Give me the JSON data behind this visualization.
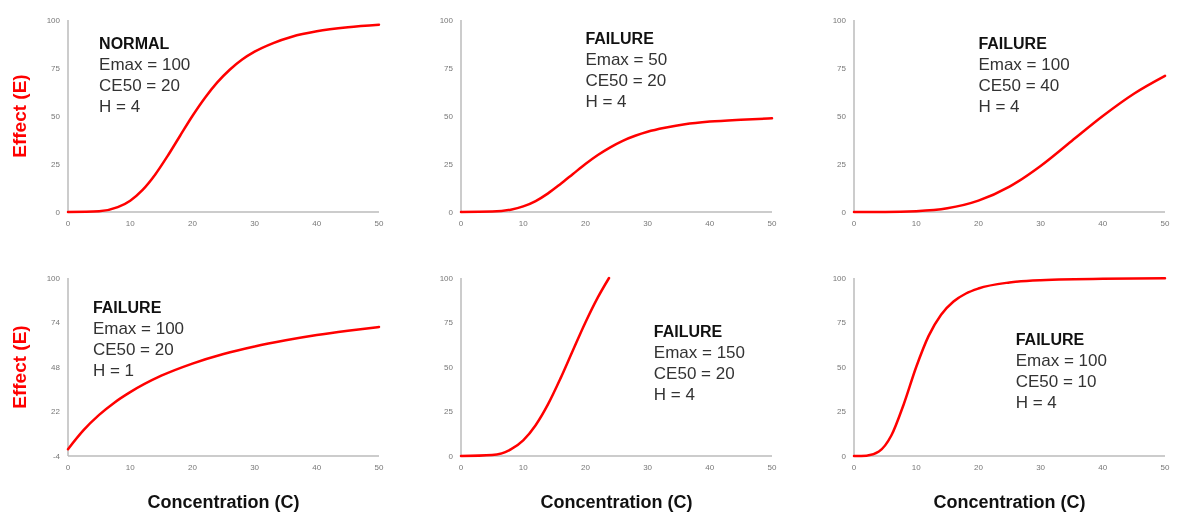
{
  "chart_data": [
    {
      "type": "line",
      "ylabel": "Effect (E)",
      "annotations": [
        "NORMAL",
        "Emax = 100",
        "CE50 = 20",
        "H = 4"
      ],
      "xlim": [
        0,
        50
      ],
      "ylim": [
        0,
        100
      ],
      "xticks": [
        0,
        10,
        20,
        30,
        40,
        50
      ],
      "yticks": [
        0,
        25,
        50,
        75,
        100
      ],
      "series": [
        {
          "color": "#ff0000",
          "x": [
            0,
            5,
            8,
            10,
            12,
            14,
            16,
            18,
            20,
            22,
            24,
            26,
            28,
            30,
            33,
            36,
            40,
            45,
            50
          ],
          "values": [
            0,
            0.4,
            2.5,
            5.9,
            11.5,
            19.4,
            29.1,
            39.6,
            50,
            59.4,
            67.5,
            74.1,
            79.4,
            83.5,
            88,
            91.3,
            94.1,
            96.2,
            97.5
          ]
        }
      ]
    },
    {
      "type": "line",
      "annotations": [
        "FAILURE",
        "Emax = 50",
        "CE50 = 20",
        "H = 4"
      ],
      "xlim": [
        0,
        50
      ],
      "ylim": [
        0,
        100
      ],
      "xticks": [
        0,
        10,
        20,
        30,
        40,
        50
      ],
      "yticks": [
        0,
        25,
        50,
        75,
        100
      ],
      "series": [
        {
          "color": "#ff0000",
          "x": [
            0,
            5,
            8,
            10,
            12,
            14,
            16,
            18,
            20,
            22,
            24,
            26,
            28,
            30,
            33,
            36,
            40,
            45,
            50
          ],
          "values": [
            0,
            0.2,
            1.2,
            2.9,
            5.7,
            9.7,
            14.6,
            19.8,
            25,
            29.7,
            33.7,
            37.1,
            39.7,
            41.8,
            44,
            45.7,
            47.1,
            48.1,
            48.8
          ]
        }
      ]
    },
    {
      "type": "line",
      "annotations": [
        "FAILURE",
        "Emax = 100",
        "CE50 = 40",
        "H = 4"
      ],
      "xlim": [
        0,
        50
      ],
      "ylim": [
        0,
        100
      ],
      "xticks": [
        0,
        10,
        20,
        30,
        40,
        50
      ],
      "yticks": [
        0,
        25,
        50,
        75,
        100
      ],
      "series": [
        {
          "color": "#ff0000",
          "x": [
            0,
            5,
            10,
            15,
            20,
            25,
            30,
            35,
            40,
            45,
            50
          ],
          "values": [
            0,
            0,
            0.4,
            1.9,
            5.9,
            13.2,
            24,
            37,
            50,
            61.6,
            70.9
          ]
        }
      ]
    },
    {
      "type": "line",
      "ylabel": "Effect (E)",
      "xlabel": "Concentration (C)",
      "annotations": [
        "FAILURE",
        "Emax = 100",
        "CE50 = 20",
        "H = 1"
      ],
      "xlim": [
        0,
        50
      ],
      "ylim": [
        -4,
        100
      ],
      "xticks": [
        0,
        10,
        20,
        30,
        40,
        50
      ],
      "yticks": [
        -4,
        22,
        48,
        74,
        100
      ],
      "series": [
        {
          "color": "#ff0000",
          "x": [
            0,
            2.5,
            5,
            7.5,
            10,
            15,
            20,
            25,
            30,
            35,
            40,
            45,
            50
          ],
          "values": [
            0,
            11.1,
            20,
            27.3,
            33.3,
            42.9,
            50,
            55.6,
            60,
            63.6,
            66.7,
            69.2,
            71.4
          ]
        }
      ]
    },
    {
      "type": "line",
      "xlabel": "Concentration (C)",
      "annotations": [
        "FAILURE",
        "Emax = 150",
        "CE50 = 20",
        "H = 4"
      ],
      "xlim": [
        0,
        50
      ],
      "ylim": [
        0,
        100
      ],
      "xticks": [
        0,
        10,
        20,
        30,
        40,
        50
      ],
      "yticks": [
        0,
        25,
        50,
        75,
        100
      ],
      "series": [
        {
          "color": "#ff0000",
          "x": [
            0,
            5,
            8,
            10,
            12,
            14,
            16,
            18,
            20,
            22,
            23.8
          ],
          "values": [
            0,
            0.6,
            3.7,
            8.8,
            17.3,
            29.1,
            43.6,
            59.4,
            75,
            89.1,
            100
          ]
        }
      ]
    },
    {
      "type": "line",
      "xlabel": "Concentration (C)",
      "annotations": [
        "FAILURE",
        "Emax = 100",
        "CE50 = 10",
        "H = 4"
      ],
      "xlim": [
        0,
        50
      ],
      "ylim": [
        0,
        100
      ],
      "xticks": [
        0,
        10,
        20,
        30,
        40,
        50
      ],
      "yticks": [
        0,
        25,
        50,
        75,
        100
      ],
      "series": [
        {
          "color": "#ff0000",
          "x": [
            0,
            2,
            4,
            6,
            8,
            10,
            12,
            14,
            16,
            18,
            20,
            25,
            30,
            40,
            50
          ],
          "values": [
            0,
            0.2,
            2.5,
            11.5,
            29.1,
            50,
            67.5,
            79.4,
            86.8,
            91.3,
            94.1,
            97.5,
            98.8,
            99.6,
            99.8
          ]
        }
      ]
    }
  ]
}
